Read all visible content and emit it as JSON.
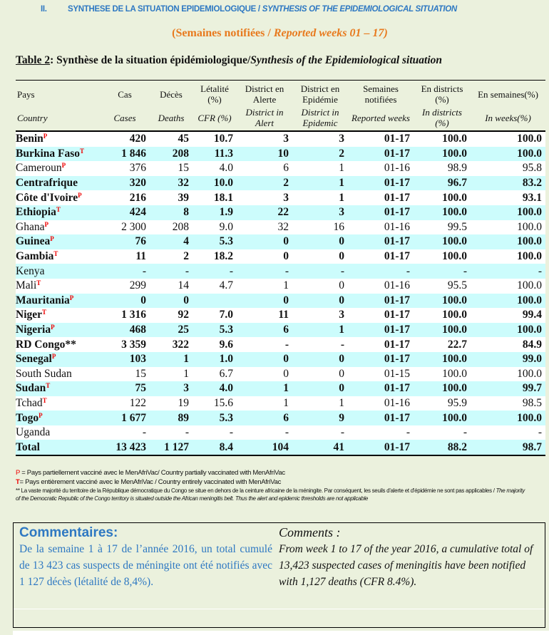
{
  "section": {
    "number": "II.",
    "title_fr": "SYNTHESE DE LA SITUATION EPIDEMIOLOGIQUE / ",
    "title_en": "SYNTHESIS OF THE EPIDEMIOLOGICAL SITUATION"
  },
  "subtitle": {
    "fr": "(Semaines notifiées / ",
    "en": "Reported weeks 01 – 17)"
  },
  "table_title": {
    "label": "Table 2",
    "fr": ": Synthèse de la situation épidémiologique/",
    "en": "Synthesis of the Epidemiological situation"
  },
  "colors": {
    "accent_blue": "#2e78c2",
    "orange": "#e87a1e",
    "marker_red": "#e00000",
    "stripe": "#ccfcfc",
    "background": "#ebf1dd"
  },
  "headers": [
    {
      "fr": "Pays",
      "en": "Country"
    },
    {
      "fr": "Cas",
      "en": "Cases"
    },
    {
      "fr": "Décès",
      "en": "Deaths"
    },
    {
      "fr": "Létalité (%)",
      "en": "CFR (%)"
    },
    {
      "fr": "District en Alerte",
      "en": "District in Alert"
    },
    {
      "fr": "District en Epidémie",
      "en": "District in Epidemic"
    },
    {
      "fr": "Semaines notifiées",
      "en": "Reported weeks"
    },
    {
      "fr": "En districts (%)",
      "en": "In districts (%)"
    },
    {
      "fr": "En semaines(%)",
      "en": "In weeks(%)"
    }
  ],
  "rows": [
    {
      "country": "Benin",
      "mark": "P",
      "bold": true,
      "values": [
        "420",
        "45",
        "10.7",
        "3",
        "3",
        "01-17",
        "100.0",
        "100.0"
      ]
    },
    {
      "country": "Burkina Faso",
      "mark": "T",
      "bold": true,
      "values": [
        "1 846",
        "208",
        "11.3",
        "10",
        "2",
        "01-17",
        "100.0",
        "100.0"
      ]
    },
    {
      "country": "Cameroun",
      "mark": "P",
      "bold": false,
      "values": [
        "376",
        "15",
        "4.0",
        "6",
        "1",
        "01-16",
        "98.9",
        "95.8"
      ]
    },
    {
      "country": "Centrafrique",
      "mark": "",
      "bold": true,
      "values": [
        "320",
        "32",
        "10.0",
        "2",
        "1",
        "01-17",
        "96.7",
        "83.2"
      ]
    },
    {
      "country": "Côte d'Ivoire",
      "mark": "P",
      "bold": true,
      "values": [
        "216",
        "39",
        "18.1",
        "3",
        "1",
        "01-17",
        "100.0",
        "93.1"
      ]
    },
    {
      "country": "Ethiopia",
      "mark": "T",
      "bold": true,
      "values": [
        "424",
        "8",
        "1.9",
        "22",
        "3",
        "01-17",
        "100.0",
        "100.0"
      ]
    },
    {
      "country": "Ghana",
      "mark": "P",
      "bold": false,
      "values": [
        "2 300",
        "208",
        "9.0",
        "32",
        "16",
        "01-16",
        "99.5",
        "100.0"
      ]
    },
    {
      "country": "Guinea",
      "mark": "P",
      "bold": true,
      "values": [
        "76",
        "4",
        "5.3",
        "0",
        "0",
        "01-17",
        "100.0",
        "100.0"
      ]
    },
    {
      "country": "Gambia",
      "mark": "T",
      "bold": true,
      "values": [
        "11",
        "2",
        "18.2",
        "0",
        "0",
        "01-17",
        "100.0",
        "100.0"
      ]
    },
    {
      "country": "Kenya",
      "mark": "",
      "bold": false,
      "values": [
        "-",
        "-",
        "-",
        "-",
        "-",
        "-",
        "-",
        "-"
      ]
    },
    {
      "country": "Mali",
      "mark": "T",
      "bold": false,
      "values": [
        "299",
        "14",
        "4.7",
        "1",
        "0",
        "01-16",
        "95.5",
        "100.0"
      ]
    },
    {
      "country": "Mauritania",
      "mark": "P",
      "bold": true,
      "values": [
        "0",
        "0",
        "",
        "0",
        "0",
        "01-17",
        "100.0",
        "100.0"
      ]
    },
    {
      "country": "Niger",
      "mark": "T",
      "bold": true,
      "values": [
        "1 316",
        "92",
        "7.0",
        "11",
        "3",
        "01-17",
        "100.0",
        "99.4"
      ]
    },
    {
      "country": "Nigeria",
      "mark": "P",
      "bold": true,
      "values": [
        "468",
        "25",
        "5.3",
        "6",
        "1",
        "01-17",
        "100.0",
        "100.0"
      ]
    },
    {
      "country": "RD Congo**",
      "mark": "",
      "bold": true,
      "values": [
        "3 359",
        "322",
        "9.6",
        "-",
        "-",
        "01-17",
        "22.7",
        "84.9"
      ]
    },
    {
      "country": "Senegal",
      "mark": "P",
      "bold": true,
      "values": [
        "103",
        "1",
        "1.0",
        "0",
        "0",
        "01-17",
        "100.0",
        "99.0"
      ]
    },
    {
      "country": "South Sudan",
      "mark": "",
      "bold": false,
      "values": [
        "15",
        "1",
        "6.7",
        "0",
        "0",
        "01-15",
        "100.0",
        "100.0"
      ]
    },
    {
      "country": "Sudan",
      "mark": "T",
      "bold": true,
      "values": [
        "75",
        "3",
        "4.0",
        "1",
        "0",
        "01-17",
        "100.0",
        "99.7"
      ]
    },
    {
      "country": "Tchad",
      "mark": "T",
      "bold": false,
      "values": [
        "122",
        "19",
        "15.6",
        "1",
        "1",
        "01-16",
        "95.9",
        "98.5"
      ]
    },
    {
      "country": "Togo",
      "mark": "P",
      "bold": true,
      "values": [
        "1 677",
        "89",
        "5.3",
        "6",
        "9",
        "01-17",
        "100.0",
        "100.0"
      ]
    },
    {
      "country": "Uganda",
      "mark": "",
      "bold": false,
      "values": [
        "-",
        "-",
        "-",
        "-",
        "-",
        "-",
        "-",
        "-"
      ]
    },
    {
      "country": "Total",
      "mark": "",
      "bold": true,
      "values": [
        "13 423",
        "1 127",
        "8.4",
        "104",
        "41",
        "01-17",
        "88.2",
        "98.7"
      ]
    }
  ],
  "notes": {
    "p_key": "P",
    "p_text": " = Pays partiellement vacciné avec le MenAfriVac/ Country partially  vaccinated with MenAfriVac",
    "t_key": "T",
    "t_text": "= Pays entièrement vacciné avec le MenAfriVac / Country entirely  vaccinated with MenAfriVac",
    "star_fr": "** La vaste majorité du territoire de la République démocratique du Congo se situe en dehors de la ceinture africaine de la méningite. Par conséquent, les seuils d'alerte et d'épidémie ne sont pas applicables /",
    "star_en": "The majority of the Democratic Republic of the Congo territory is situated outside the African meningitis belt. Thus the alert and epidemic thresholds are not applicable"
  },
  "comments": {
    "fr_title": "Commentaires:",
    "fr_text": "De la semaine 1 à 17 de l’année 2016, un total cumulé de 13 423 cas suspects de méningite ont été notifiés avec 1 127 décès (létalité de 8,4%).",
    "en_title": "Comments :",
    "en_text": "From week 1 to 17 of the year 2016, a cumulative total of 13,423 suspected cases of meningitis have been notified with 1,127 deaths (CFR 8.4%)."
  }
}
